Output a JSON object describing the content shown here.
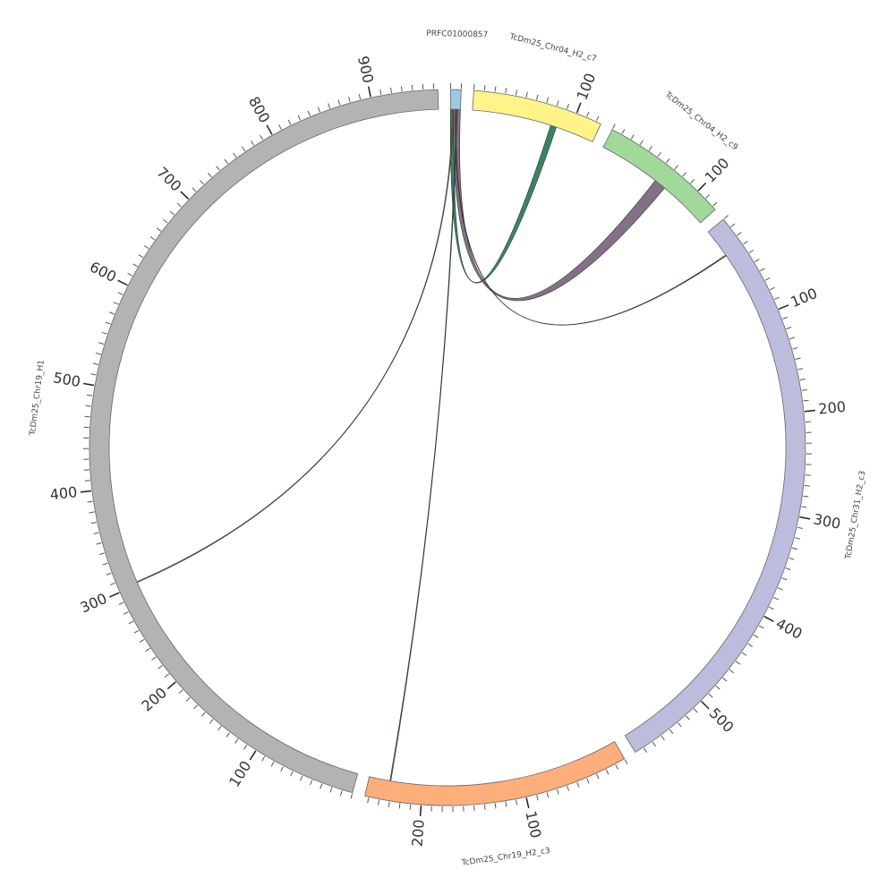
{
  "chart_data": {
    "type": "chord",
    "minor_tick_step": 10,
    "segments": [
      {
        "name": "PRFC01000857",
        "color": "#9ecae1",
        "length": 10,
        "ticks": []
      },
      {
        "name": "TcDm25_Chr04_H2_c7",
        "color": "#fff38a",
        "length": 125,
        "ticks": [
          100
        ]
      },
      {
        "name": "TcDm25_Chr04_H2_c9",
        "color": "#a1d99b",
        "length": 124,
        "ticks": [
          100
        ]
      },
      {
        "name": "TcDm25_Chr31_H2_c3",
        "color": "#bcbddc",
        "length": 579,
        "ticks": [
          100,
          200,
          300,
          400,
          500
        ]
      },
      {
        "name": "TcDm25_Chr19_H2_c3",
        "color": "#fdae7b",
        "length": 254,
        "ticks": [
          100,
          200
        ]
      },
      {
        "name": "TcDm25_Chr19_H1",
        "color": "#b3b3b3",
        "length": 964,
        "ticks": [
          100,
          200,
          300,
          400,
          500,
          600,
          700,
          800,
          900
        ]
      }
    ],
    "links": [
      {
        "source": "PRFC01000857",
        "source_range": [
          0,
          4
        ],
        "target": "TcDm25_Chr04_H2_c7",
        "target_range": [
          80,
          86
        ],
        "color": "#2f7d5e"
      },
      {
        "source": "PRFC01000857",
        "source_range": [
          3,
          10
        ],
        "target": "TcDm25_Chr04_H2_c9",
        "target_range": [
          62,
          74
        ],
        "color": "#7c6a80"
      },
      {
        "source": "PRFC01000857",
        "source_range": [
          5,
          6
        ],
        "target": "TcDm25_Chr31_H2_c3",
        "target_range": [
          29,
          30
        ],
        "color": "#8b3a2a"
      },
      {
        "source": "PRFC01000857",
        "source_range": [
          6,
          7
        ],
        "target": "TcDm25_Chr19_H2_c3",
        "target_range": [
          232,
          233
        ],
        "color": "#3a6b8a"
      },
      {
        "source": "PRFC01000857",
        "source_range": [
          2,
          3
        ],
        "target": "TcDm25_Chr19_H1",
        "target_range": [
          302,
          303
        ],
        "color": "#8a8a2a"
      }
    ]
  }
}
